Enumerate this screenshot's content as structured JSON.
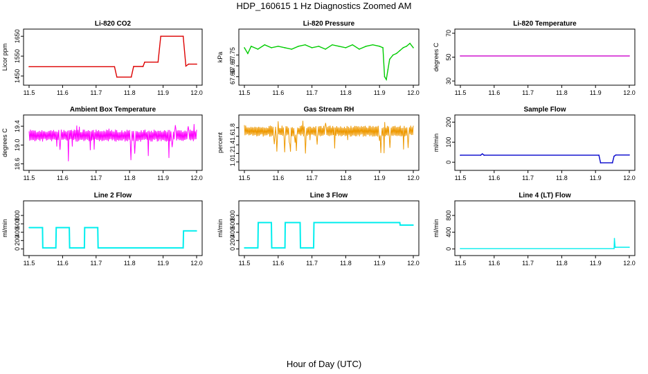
{
  "title": "HDP_160615  1 Hz Diagnostics Zoomed AM",
  "xlabel": "Hour of Day (UTC)",
  "chart_data": [
    {
      "type": "line",
      "title": "Li-820 CO2",
      "ylabel": "Licor ppm",
      "color": "#dd0000",
      "xlim": [
        11.5,
        12.0
      ],
      "ylim": [
        1425,
        1665
      ],
      "xticks": [
        11.5,
        11.6,
        11.7,
        11.8,
        11.9,
        12.0
      ],
      "xtick_labels": [
        "11.5",
        "11.6",
        "11.7",
        "11.8",
        "11.9",
        "12.0"
      ],
      "yticks": [
        1450,
        1550,
        1650
      ],
      "ytick_labels": [
        "1450",
        "1550",
        "1650"
      ],
      "series": [
        {
          "x": [
            11.5,
            11.755,
            11.762,
            11.805,
            11.812,
            11.84,
            11.845,
            11.885,
            11.893,
            11.96,
            11.968,
            11.976,
            12.0
          ],
          "y": [
            1497,
            1497,
            1445,
            1445,
            1498,
            1498,
            1520,
            1520,
            1650,
            1650,
            1500,
            1510,
            1510
          ]
        }
      ]
    },
    {
      "type": "line",
      "title": "Li-820 Pressure",
      "ylabel": "kPa",
      "color": "#00cc00",
      "xlim": [
        11.5,
        12.0
      ],
      "ylim": [
        67.57,
        67.9
      ],
      "xticks": [
        11.5,
        11.6,
        11.7,
        11.8,
        11.9,
        12.0
      ],
      "xtick_labels": [
        "11.5",
        "11.6",
        "11.7",
        "11.8",
        "11.9",
        "12.0"
      ],
      "yticks": [
        67.6,
        67.675,
        67.75
      ],
      "ytick_labels": [
        "67.60",
        "67.67",
        "67.75"
      ],
      "series": [
        {
          "x": [
            11.5,
            11.51,
            11.52,
            11.54,
            11.56,
            11.58,
            11.6,
            11.62,
            11.64,
            11.66,
            11.68,
            11.7,
            11.72,
            11.74,
            11.76,
            11.78,
            11.8,
            11.82,
            11.84,
            11.86,
            11.88,
            11.9,
            11.91,
            11.915,
            11.92,
            11.925,
            11.93,
            11.94,
            11.95,
            11.96,
            11.97,
            11.98,
            11.99,
            12.0
          ],
          "y": [
            67.8,
            67.76,
            67.81,
            67.79,
            67.82,
            67.8,
            67.81,
            67.8,
            67.79,
            67.81,
            67.82,
            67.8,
            67.81,
            67.79,
            67.82,
            67.81,
            67.8,
            67.82,
            67.79,
            67.81,
            67.82,
            67.81,
            67.8,
            67.6,
            67.58,
            67.65,
            67.72,
            67.75,
            67.76,
            67.78,
            67.8,
            67.81,
            67.83,
            67.8
          ]
        }
      ]
    },
    {
      "type": "line",
      "title": "Li-820 Temperature",
      "ylabel": "degrees C",
      "color": "#cc00cc",
      "xlim": [
        11.5,
        12.0
      ],
      "ylim": [
        30,
        70
      ],
      "xticks": [
        11.5,
        11.6,
        11.7,
        11.8,
        11.9,
        12.0
      ],
      "xtick_labels": [
        "11.5",
        "11.6",
        "11.7",
        "11.8",
        "11.9",
        "12.0"
      ],
      "yticks": [
        30,
        50,
        70
      ],
      "ytick_labels": [
        "30",
        "50",
        "70"
      ],
      "series": [
        {
          "x": [
            11.5,
            12.0
          ],
          "y": [
            51,
            51
          ]
        }
      ]
    },
    {
      "type": "line",
      "title": "Ambient Box Temperature",
      "ylabel": "degrees C",
      "color": "#ff00ff",
      "xlim": [
        11.5,
        12.0
      ],
      "ylim": [
        18.55,
        19.55
      ],
      "xticks": [
        11.5,
        11.6,
        11.7,
        11.8,
        11.9,
        12.0
      ],
      "xtick_labels": [
        "11.5",
        "11.6",
        "11.7",
        "11.8",
        "11.9",
        "12.0"
      ],
      "yticks": [
        18.6,
        19.0,
        19.4
      ],
      "ytick_labels": [
        "18.6",
        "19.0",
        "19.4"
      ],
      "series": [
        {
          "name": "upper",
          "x": [
            11.5,
            12.0
          ],
          "y": [
            19.3,
            19.3
          ]
        },
        {
          "name": "lower",
          "x": [
            11.5,
            12.0
          ],
          "y": [
            19.1,
            19.1
          ]
        }
      ]
    },
    {
      "type": "line",
      "title": "Gas Stream RH",
      "ylabel": "percent",
      "color": "#ee9900",
      "xlim": [
        11.5,
        12.0
      ],
      "ylim": [
        0.9,
        2.0
      ],
      "xticks": [
        11.5,
        11.6,
        11.7,
        11.8,
        11.9,
        12.0
      ],
      "xtick_labels": [
        "11.5",
        "11.6",
        "11.7",
        "11.8",
        "11.9",
        "12.0"
      ],
      "yticks": [
        1.0,
        1.2,
        1.4,
        1.6,
        1.8
      ],
      "ytick_labels": [
        "1.0",
        "1.2",
        "1.4",
        "1.6",
        "1.8"
      ],
      "series": [
        {
          "name": "upper",
          "x": [
            11.5,
            12.0
          ],
          "y": [
            1.82,
            1.82
          ]
        },
        {
          "name": "lower",
          "x": [
            11.5,
            12.0
          ],
          "y": [
            1.62,
            1.62
          ]
        }
      ]
    },
    {
      "type": "line",
      "title": "Sample Flow",
      "ylabel": "ml/min",
      "color": "#0000cc",
      "xlim": [
        11.5,
        12.0
      ],
      "ylim": [
        -20,
        215
      ],
      "xticks": [
        11.5,
        11.6,
        11.7,
        11.8,
        11.9,
        12.0
      ],
      "xtick_labels": [
        "11.5",
        "11.6",
        "11.7",
        "11.8",
        "11.9",
        "12.0"
      ],
      "yticks": [
        0,
        100,
        200
      ],
      "ytick_labels": [
        "0",
        "100",
        "200"
      ],
      "series": [
        {
          "x": [
            11.5,
            11.56,
            11.565,
            11.57,
            11.91,
            11.915,
            11.95,
            11.955,
            11.96,
            12.0
          ],
          "y": [
            35,
            35,
            42,
            35,
            35,
            -3,
            -3,
            30,
            36,
            36
          ]
        }
      ]
    },
    {
      "type": "line",
      "title": "Line 2 Flow",
      "ylabel": "ml/min",
      "color": "#00eeee",
      "xlim": [
        11.5,
        12.0
      ],
      "ylim": [
        -60,
        1050
      ],
      "xticks": [
        11.5,
        11.6,
        11.7,
        11.8,
        11.9,
        12.0
      ],
      "xtick_labels": [
        "11.5",
        "11.6",
        "11.7",
        "11.8",
        "11.9",
        "12.0"
      ],
      "yticks": [
        0,
        200,
        400,
        600,
        800
      ],
      "ytick_labels": [
        "0",
        "200",
        "400",
        "600",
        "800"
      ],
      "series": [
        {
          "x": [
            11.5,
            11.54,
            11.541,
            11.58,
            11.581,
            11.62,
            11.621,
            11.665,
            11.666,
            11.705,
            11.706,
            11.96,
            11.961,
            12.0
          ],
          "y": [
            510,
            510,
            25,
            25,
            510,
            510,
            25,
            25,
            510,
            510,
            25,
            25,
            430,
            430
          ]
        }
      ]
    },
    {
      "type": "line",
      "title": "Line 3 Flow",
      "ylabel": "ml/min",
      "color": "#00eeee",
      "xlim": [
        11.5,
        12.0
      ],
      "ylim": [
        -60,
        1050
      ],
      "xticks": [
        11.5,
        11.6,
        11.7,
        11.8,
        11.9,
        12.0
      ],
      "xtick_labels": [
        "11.5",
        "11.6",
        "11.7",
        "11.8",
        "11.9",
        "12.0"
      ],
      "yticks": [
        0,
        200,
        400,
        600,
        800
      ],
      "ytick_labels": [
        "0",
        "200",
        "400",
        "600",
        "800"
      ],
      "series": [
        {
          "x": [
            11.5,
            11.54,
            11.541,
            11.58,
            11.581,
            11.62,
            11.621,
            11.665,
            11.666,
            11.705,
            11.706,
            11.96,
            11.961,
            12.0
          ],
          "y": [
            25,
            25,
            630,
            630,
            25,
            25,
            630,
            630,
            25,
            25,
            630,
            630,
            570,
            570
          ]
        }
      ]
    },
    {
      "type": "line",
      "title": "Line 4 (LT) Flow",
      "ylabel": "ml/min",
      "color": "#00eeee",
      "xlim": [
        11.5,
        12.0
      ],
      "ylim": [
        -60,
        1050
      ],
      "xticks": [
        11.5,
        11.6,
        11.7,
        11.8,
        11.9,
        12.0
      ],
      "xtick_labels": [
        "11.5",
        "11.6",
        "11.7",
        "11.8",
        "11.9",
        "12.0"
      ],
      "yticks": [
        0,
        400,
        800
      ],
      "ytick_labels": [
        "0",
        "400",
        "800"
      ],
      "series": [
        {
          "x": [
            11.5,
            11.955,
            11.956,
            11.958,
            11.96,
            12.0
          ],
          "y": [
            8,
            8,
            250,
            40,
            40,
            40
          ]
        }
      ]
    }
  ]
}
